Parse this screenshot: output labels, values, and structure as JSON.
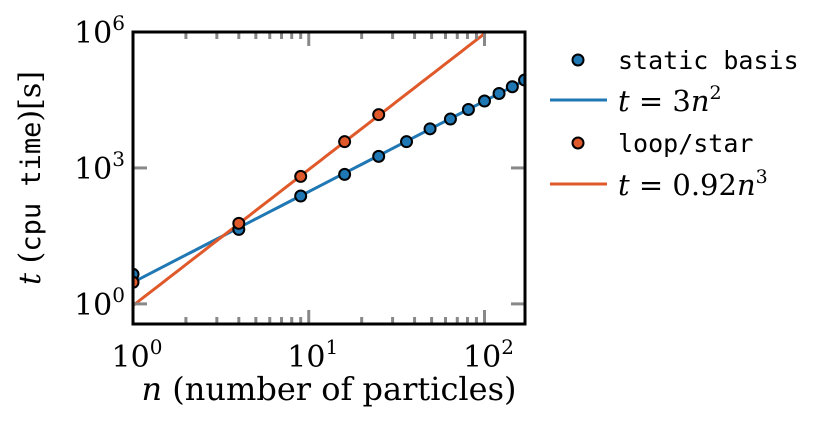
{
  "chart_data": {
    "type": "scatter",
    "x_scale": "log",
    "y_scale": "log",
    "xlim": [
      1,
      170
    ],
    "ylim": [
      0.36,
      1000000
    ],
    "grid": false,
    "legend_placement": "right",
    "xlabel": {
      "var": "n",
      "rest": " (number of particles)"
    },
    "ylabel": {
      "var": "t",
      "open": " (",
      "mono": "cpu time",
      "close": ")[s]"
    },
    "x_ticks": [
      {
        "value": 1,
        "base": "10",
        "exp": "0"
      },
      {
        "value": 10,
        "base": "10",
        "exp": "1"
      },
      {
        "value": 100,
        "base": "10",
        "exp": "2"
      }
    ],
    "y_ticks": [
      {
        "value": 1,
        "base": "10",
        "exp": "0"
      },
      {
        "value": 1000,
        "base": "10",
        "exp": "3"
      },
      {
        "value": 1000000,
        "base": "10",
        "exp": "6"
      }
    ],
    "series": [
      {
        "name": "static basis",
        "kind": "points",
        "color": "#1f77b4",
        "x": [
          1,
          4,
          9,
          16,
          25,
          36,
          49,
          64,
          81,
          100,
          121,
          144,
          169
        ],
        "y": [
          4.5,
          44,
          240,
          720,
          1800,
          3800,
          7300,
          12000,
          19500,
          30000,
          44000,
          62000,
          87000
        ]
      },
      {
        "name": "t = 3n²",
        "label_parts": {
          "pre": "t",
          "mid": " = 3",
          "var": "n",
          "exp": "2"
        },
        "kind": "line",
        "color": "#1f77b4",
        "coef": 3,
        "power": 2,
        "x_range": [
          1,
          169
        ]
      },
      {
        "name": "loop/star",
        "kind": "points",
        "color": "#e0592a",
        "x": [
          1,
          4,
          9,
          16,
          25
        ],
        "y": [
          3,
          60,
          650,
          3800,
          15000
        ]
      },
      {
        "name": "t = 0.92n³",
        "label_parts": {
          "pre": "t",
          "mid": " = 0.92",
          "var": "n",
          "exp": "3"
        },
        "kind": "line",
        "color": "#e0592a",
        "coef": 0.92,
        "power": 3,
        "x_range": [
          1,
          100
        ]
      }
    ]
  }
}
